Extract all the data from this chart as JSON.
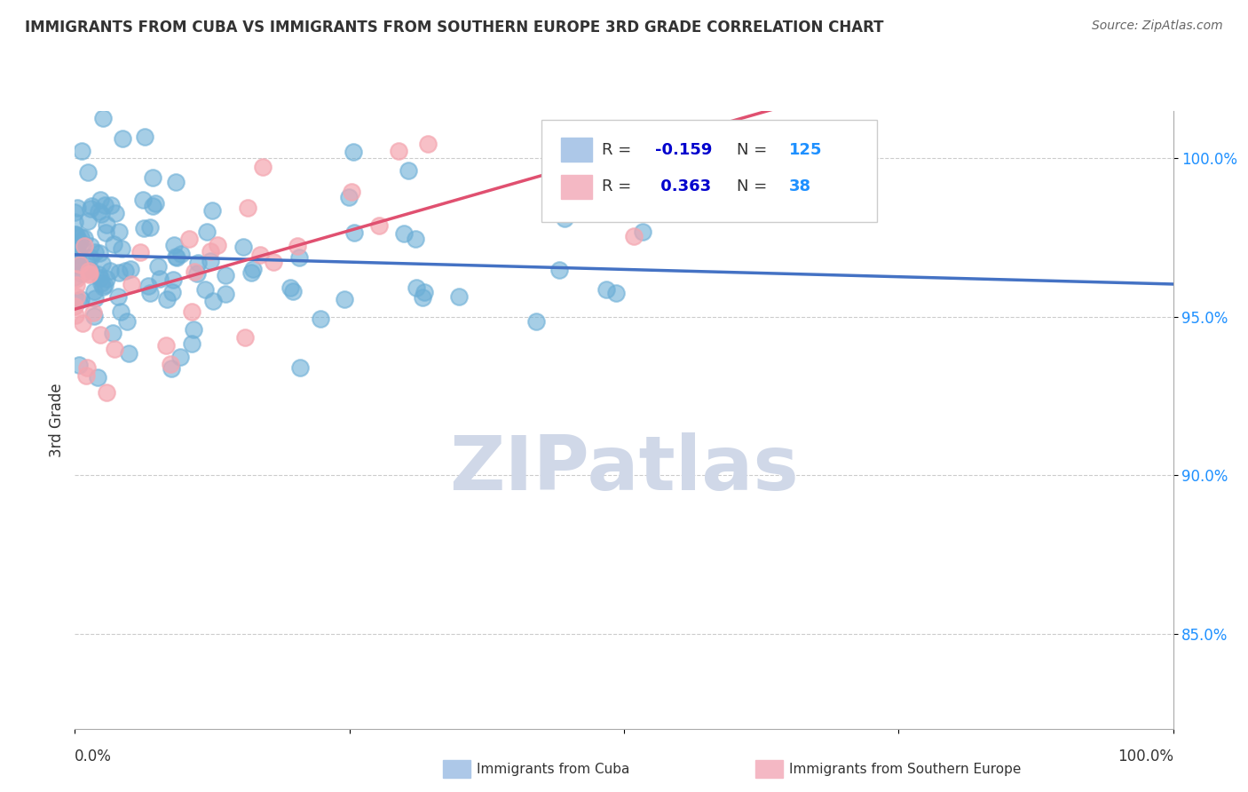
{
  "title": "IMMIGRANTS FROM CUBA VS IMMIGRANTS FROM SOUTHERN EUROPE 3RD GRADE CORRELATION CHART",
  "source": "Source: ZipAtlas.com",
  "ylabel": "3rd Grade",
  "series": [
    {
      "name": "Immigrants from Cuba",
      "color": "#6baed6",
      "edge_color": "#6baed6",
      "R": -0.159,
      "N": 125
    },
    {
      "name": "Immigrants from Southern Europe",
      "color": "#f4a6b0",
      "edge_color": "#f4a6b0",
      "R": 0.363,
      "N": 38
    }
  ],
  "xlim": [
    0.0,
    1.0
  ],
  "ylim": [
    82.0,
    101.5
  ],
  "yticks": [
    85.0,
    90.0,
    95.0,
    100.0
  ],
  "ytick_labels": [
    "85.0%",
    "90.0%",
    "95.0%",
    "100.0%"
  ],
  "background_color": "#ffffff",
  "grid_color": "#cccccc",
  "title_color": "#333333",
  "legend_R_color": "#0000cd",
  "legend_N_color": "#1e90ff",
  "watermark": "ZIPatlas",
  "watermark_color": "#d0d8e8",
  "trend_blue": "#4472c4",
  "trend_pink": "#e05070"
}
